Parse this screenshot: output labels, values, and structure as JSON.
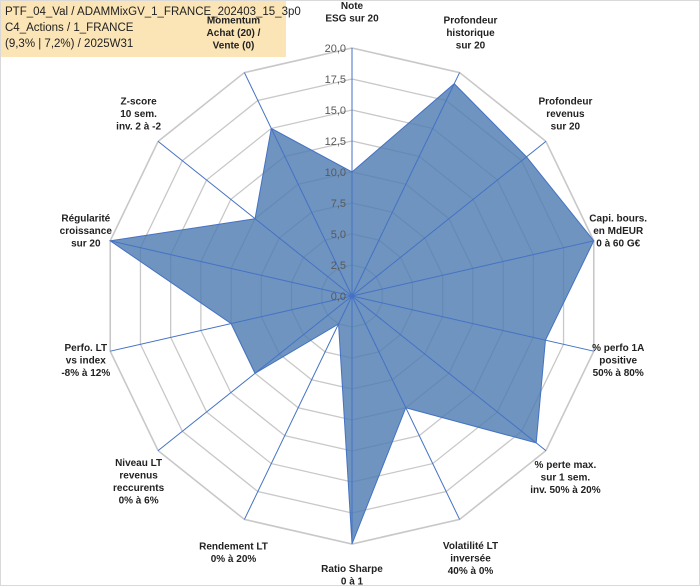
{
  "header": {
    "lines": [
      "PTF_04_Val / ADAMMixGV_1_FRANCE_202403_15_3p0",
      "C4_Actions / 1_FRANCE",
      "(9,3% | 7,2%) / 2025W31"
    ]
  },
  "colors": {
    "fill": "#4f7cb2",
    "stroke": "#4472c4",
    "grid": "#c8c8c8",
    "title_bg": "#fbe5b6"
  },
  "chart_data": {
    "type": "radar",
    "title": "",
    "rlim": [
      0,
      20
    ],
    "tick_labels": [
      "0,0",
      "2,5",
      "5,0",
      "7,5",
      "10,0",
      "12,5",
      "15,0",
      "17,5",
      "20,0"
    ],
    "grid": true,
    "axes": [
      [
        "Note",
        "ESG sur 20"
      ],
      [
        "Profondeur",
        "historique",
        "sur 20"
      ],
      [
        "Profondeur",
        "revenus",
        "sur 20"
      ],
      [
        "Capi. bours.",
        "en MdEUR",
        "0 à 60 G€"
      ],
      [
        "% perfo 1A",
        "positive",
        "50% à 80%"
      ],
      [
        "% perte max.",
        "sur 1 sem.",
        "inv. 50% à 20%"
      ],
      [
        "Volatilité LT",
        "inversée",
        "40% à 0%"
      ],
      [
        "Ratio Sharpe",
        "0 à 1"
      ],
      [
        "Rendement LT",
        "0% à 20%"
      ],
      [
        "Niveau LT",
        "revenus",
        "reccurents",
        "0% à 6%"
      ],
      [
        "Perfo. LT",
        "vs index",
        "-8% à 12%"
      ],
      [
        "Régularité",
        "croissance",
        "sur 20"
      ],
      [
        "Z-score",
        "10 sem.",
        "inv. 2 à -2"
      ],
      [
        "Momentum",
        "Achat (20) /",
        "Vente (0)"
      ]
    ],
    "series": [
      {
        "values": [
          10,
          19,
          18,
          20,
          16,
          19,
          10,
          20,
          2.5,
          10,
          10,
          20,
          10,
          15
        ]
      }
    ]
  }
}
